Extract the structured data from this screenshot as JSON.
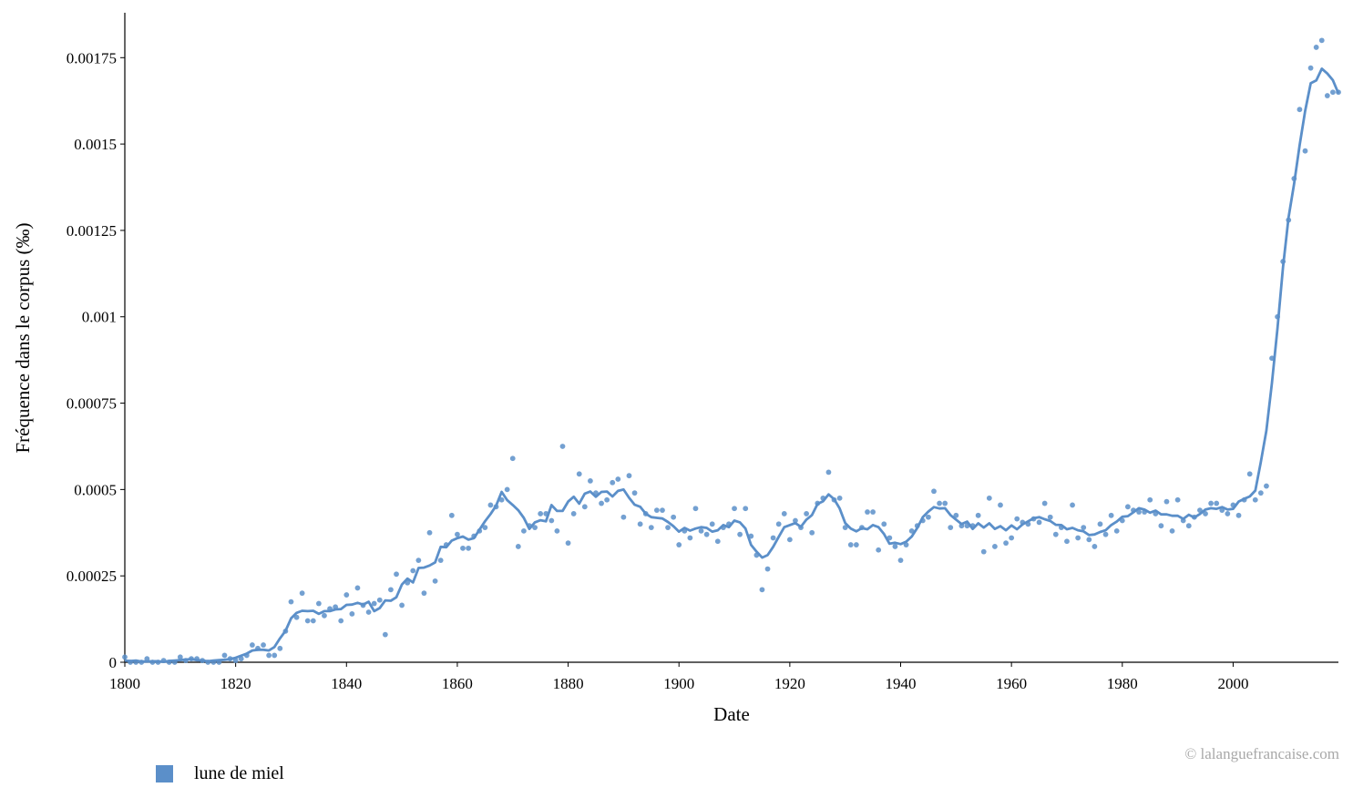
{
  "chart_data": {
    "type": "line",
    "xlabel": "Date",
    "ylabel": "Fréquence dans le corpus (‰)",
    "xlim": [
      1800,
      2019
    ],
    "ylim": [
      0,
      0.00188
    ],
    "x_ticks": [
      1800,
      1820,
      1840,
      1860,
      1880,
      1900,
      1920,
      1940,
      1960,
      1980,
      2000
    ],
    "y_ticks": [
      {
        "value": 0,
        "label": "0"
      },
      {
        "value": 0.00025,
        "label": "0.00025"
      },
      {
        "value": 0.0005,
        "label": "0.0005"
      },
      {
        "value": 0.00075,
        "label": "0.00075"
      },
      {
        "value": 0.001,
        "label": "0.001"
      },
      {
        "value": 0.00125,
        "label": "0.00125"
      },
      {
        "value": 0.0015,
        "label": "0.0015"
      },
      {
        "value": 0.00175,
        "label": "0.00175"
      }
    ],
    "grid": false,
    "legend_position": "bottom-left",
    "series": [
      {
        "name": "lune de miel",
        "color": "#5b8fc9",
        "points": [
          [
            1800,
            1.5e-05
          ],
          [
            1801,
            0.0
          ],
          [
            1802,
            0.0
          ],
          [
            1803,
            0.0
          ],
          [
            1804,
            1e-05
          ],
          [
            1805,
            0.0
          ],
          [
            1806,
            0.0
          ],
          [
            1807,
            5e-06
          ],
          [
            1808,
            0.0
          ],
          [
            1809,
            0.0
          ],
          [
            1810,
            1.5e-05
          ],
          [
            1811,
            5e-06
          ],
          [
            1812,
            1e-05
          ],
          [
            1813,
            1e-05
          ],
          [
            1814,
            5e-06
          ],
          [
            1815,
            0.0
          ],
          [
            1816,
            0.0
          ],
          [
            1817,
            0.0
          ],
          [
            1818,
            2e-05
          ],
          [
            1819,
            1e-05
          ],
          [
            1820,
            5e-06
          ],
          [
            1821,
            1e-05
          ],
          [
            1822,
            2e-05
          ],
          [
            1823,
            5e-05
          ],
          [
            1824,
            4e-05
          ],
          [
            1825,
            5e-05
          ],
          [
            1826,
            2e-05
          ],
          [
            1827,
            2e-05
          ],
          [
            1828,
            4e-05
          ],
          [
            1829,
            9e-05
          ],
          [
            1830,
            0.000175
          ],
          [
            1831,
            0.00013
          ],
          [
            1832,
            0.0002
          ],
          [
            1833,
            0.00012
          ],
          [
            1834,
            0.00012
          ],
          [
            1835,
            0.00017
          ],
          [
            1836,
            0.000135
          ],
          [
            1837,
            0.000155
          ],
          [
            1838,
            0.00016
          ],
          [
            1839,
            0.00012
          ],
          [
            1840,
            0.000195
          ],
          [
            1841,
            0.00014
          ],
          [
            1842,
            0.000215
          ],
          [
            1843,
            0.000165
          ],
          [
            1844,
            0.000145
          ],
          [
            1845,
            0.00017
          ],
          [
            1846,
            0.00018
          ],
          [
            1847,
            8e-05
          ],
          [
            1848,
            0.00021
          ],
          [
            1849,
            0.000255
          ],
          [
            1850,
            0.000165
          ],
          [
            1851,
            0.00023
          ],
          [
            1852,
            0.000265
          ],
          [
            1853,
            0.000295
          ],
          [
            1854,
            0.0002
          ],
          [
            1855,
            0.000375
          ],
          [
            1856,
            0.000235
          ],
          [
            1857,
            0.000295
          ],
          [
            1858,
            0.00034
          ],
          [
            1859,
            0.000425
          ],
          [
            1860,
            0.00037
          ],
          [
            1861,
            0.00033
          ],
          [
            1862,
            0.00033
          ],
          [
            1863,
            0.000365
          ],
          [
            1864,
            0.00038
          ],
          [
            1865,
            0.00039
          ],
          [
            1866,
            0.000455
          ],
          [
            1867,
            0.00045
          ],
          [
            1868,
            0.00047
          ],
          [
            1869,
            0.0005
          ],
          [
            1870,
            0.00059
          ],
          [
            1871,
            0.000335
          ],
          [
            1872,
            0.00038
          ],
          [
            1873,
            0.000395
          ],
          [
            1874,
            0.00039
          ],
          [
            1875,
            0.00043
          ],
          [
            1876,
            0.00043
          ],
          [
            1877,
            0.00041
          ],
          [
            1878,
            0.00038
          ],
          [
            1879,
            0.000625
          ],
          [
            1880,
            0.000345
          ],
          [
            1881,
            0.00043
          ],
          [
            1882,
            0.000545
          ],
          [
            1883,
            0.00045
          ],
          [
            1884,
            0.000525
          ],
          [
            1885,
            0.00049
          ],
          [
            1886,
            0.00046
          ],
          [
            1887,
            0.00047
          ],
          [
            1888,
            0.00052
          ],
          [
            1889,
            0.00053
          ],
          [
            1890,
            0.00042
          ],
          [
            1891,
            0.00054
          ],
          [
            1892,
            0.00049
          ],
          [
            1893,
            0.0004
          ],
          [
            1894,
            0.00043
          ],
          [
            1895,
            0.00039
          ],
          [
            1896,
            0.00044
          ],
          [
            1897,
            0.00044
          ],
          [
            1898,
            0.00039
          ],
          [
            1899,
            0.00042
          ],
          [
            1900,
            0.00034
          ],
          [
            1901,
            0.00038
          ],
          [
            1902,
            0.00036
          ],
          [
            1903,
            0.000445
          ],
          [
            1904,
            0.00038
          ],
          [
            1905,
            0.00037
          ],
          [
            1906,
            0.0004
          ],
          [
            1907,
            0.00035
          ],
          [
            1908,
            0.00039
          ],
          [
            1909,
            0.0004
          ],
          [
            1910,
            0.000445
          ],
          [
            1911,
            0.00037
          ],
          [
            1912,
            0.000445
          ],
          [
            1913,
            0.000365
          ],
          [
            1914,
            0.00031
          ],
          [
            1915,
            0.00021
          ],
          [
            1916,
            0.00027
          ],
          [
            1917,
            0.00036
          ],
          [
            1918,
            0.0004
          ],
          [
            1919,
            0.00043
          ],
          [
            1920,
            0.000355
          ],
          [
            1921,
            0.00041
          ],
          [
            1922,
            0.00039
          ],
          [
            1923,
            0.00043
          ],
          [
            1924,
            0.000375
          ],
          [
            1925,
            0.00046
          ],
          [
            1926,
            0.000475
          ],
          [
            1927,
            0.00055
          ],
          [
            1928,
            0.00047
          ],
          [
            1929,
            0.000475
          ],
          [
            1930,
            0.00039
          ],
          [
            1931,
            0.00034
          ],
          [
            1932,
            0.00034
          ],
          [
            1933,
            0.00039
          ],
          [
            1934,
            0.000435
          ],
          [
            1935,
            0.000435
          ],
          [
            1936,
            0.000325
          ],
          [
            1937,
            0.0004
          ],
          [
            1938,
            0.00036
          ],
          [
            1939,
            0.000335
          ],
          [
            1940,
            0.000295
          ],
          [
            1941,
            0.00034
          ],
          [
            1942,
            0.00038
          ],
          [
            1943,
            0.000395
          ],
          [
            1944,
            0.00041
          ],
          [
            1945,
            0.00042
          ],
          [
            1946,
            0.000495
          ],
          [
            1947,
            0.00046
          ],
          [
            1948,
            0.00046
          ],
          [
            1949,
            0.00039
          ],
          [
            1950,
            0.000425
          ],
          [
            1951,
            0.000395
          ],
          [
            1952,
            0.000395
          ],
          [
            1953,
            0.000395
          ],
          [
            1954,
            0.000425
          ],
          [
            1955,
            0.00032
          ],
          [
            1956,
            0.000475
          ],
          [
            1957,
            0.000335
          ],
          [
            1958,
            0.000455
          ],
          [
            1959,
            0.000345
          ],
          [
            1960,
            0.00036
          ],
          [
            1961,
            0.000415
          ],
          [
            1962,
            0.000405
          ],
          [
            1963,
            0.0004
          ],
          [
            1964,
            0.000415
          ],
          [
            1965,
            0.000405
          ],
          [
            1966,
            0.00046
          ],
          [
            1967,
            0.00042
          ],
          [
            1968,
            0.00037
          ],
          [
            1969,
            0.00039
          ],
          [
            1970,
            0.00035
          ],
          [
            1971,
            0.000455
          ],
          [
            1972,
            0.00036
          ],
          [
            1973,
            0.00039
          ],
          [
            1974,
            0.000355
          ],
          [
            1975,
            0.000335
          ],
          [
            1976,
            0.0004
          ],
          [
            1977,
            0.00037
          ],
          [
            1978,
            0.000425
          ],
          [
            1979,
            0.00038
          ],
          [
            1980,
            0.00041
          ],
          [
            1981,
            0.00045
          ],
          [
            1982,
            0.00044
          ],
          [
            1983,
            0.000435
          ],
          [
            1984,
            0.000435
          ],
          [
            1985,
            0.00047
          ],
          [
            1986,
            0.00043
          ],
          [
            1987,
            0.000395
          ],
          [
            1988,
            0.000465
          ],
          [
            1989,
            0.00038
          ],
          [
            1990,
            0.00047
          ],
          [
            1991,
            0.00041
          ],
          [
            1992,
            0.000395
          ],
          [
            1993,
            0.00042
          ],
          [
            1994,
            0.00044
          ],
          [
            1995,
            0.00043
          ],
          [
            1996,
            0.00046
          ],
          [
            1997,
            0.00046
          ],
          [
            1998,
            0.00044
          ],
          [
            1999,
            0.00043
          ],
          [
            2000,
            0.000455
          ],
          [
            2001,
            0.000425
          ],
          [
            2002,
            0.00047
          ],
          [
            2003,
            0.000545
          ],
          [
            2004,
            0.00047
          ],
          [
            2005,
            0.00049
          ],
          [
            2006,
            0.00051
          ],
          [
            2007,
            0.00088
          ],
          [
            2008,
            0.001
          ],
          [
            2009,
            0.00116
          ],
          [
            2010,
            0.00128
          ],
          [
            2011,
            0.0014
          ],
          [
            2012,
            0.0016
          ],
          [
            2013,
            0.00148
          ],
          [
            2014,
            0.00172
          ],
          [
            2015,
            0.00178
          ],
          [
            2016,
            0.0018
          ],
          [
            2017,
            0.00164
          ],
          [
            2018,
            0.00165
          ],
          [
            2019,
            0.00165
          ]
        ]
      }
    ]
  },
  "legend": {
    "label": "lune de miel",
    "color": "#5b8fc9"
  },
  "copyright": "© lalanguefrancaise.com"
}
